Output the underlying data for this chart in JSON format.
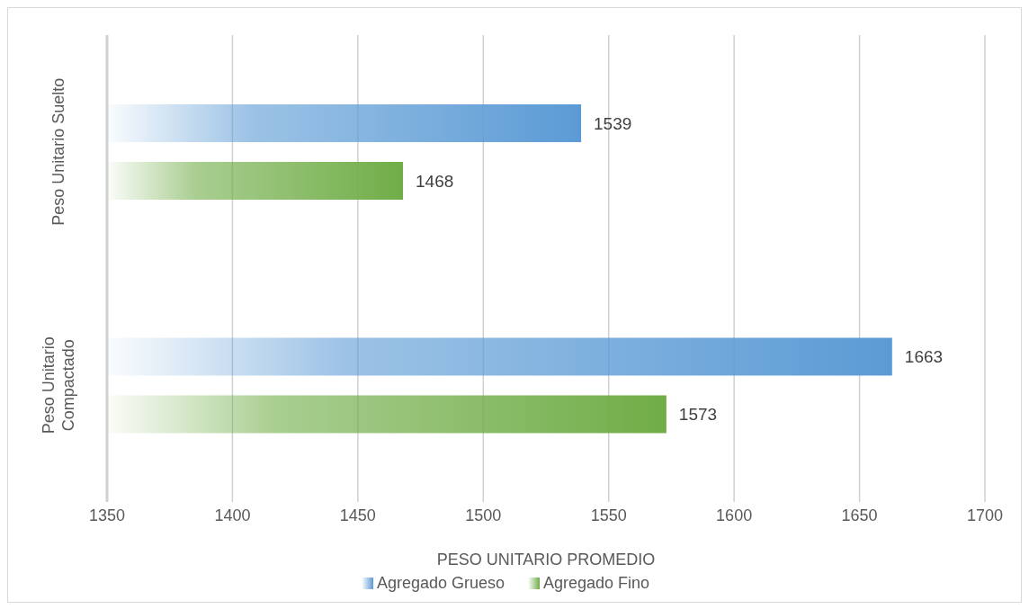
{
  "chart_data": {
    "type": "bar",
    "orientation": "horizontal",
    "xlabel": "PESO UNITARIO PROMEDIO",
    "categories": [
      "Peso Unitario Suelto",
      "Peso Unitario Compactado"
    ],
    "series": [
      {
        "name": "Agregado Grueso",
        "color": "#5b9bd5",
        "values": [
          1539,
          1663
        ]
      },
      {
        "name": "Agregado Fino",
        "color": "#70ad47",
        "values": [
          1468,
          1573
        ]
      }
    ],
    "xlim": [
      1350,
      1700
    ],
    "xticks": [
      1350,
      1400,
      1450,
      1500,
      1550,
      1600,
      1650,
      1700
    ],
    "grid": "x",
    "data_labels": true,
    "legend": "bottom"
  }
}
